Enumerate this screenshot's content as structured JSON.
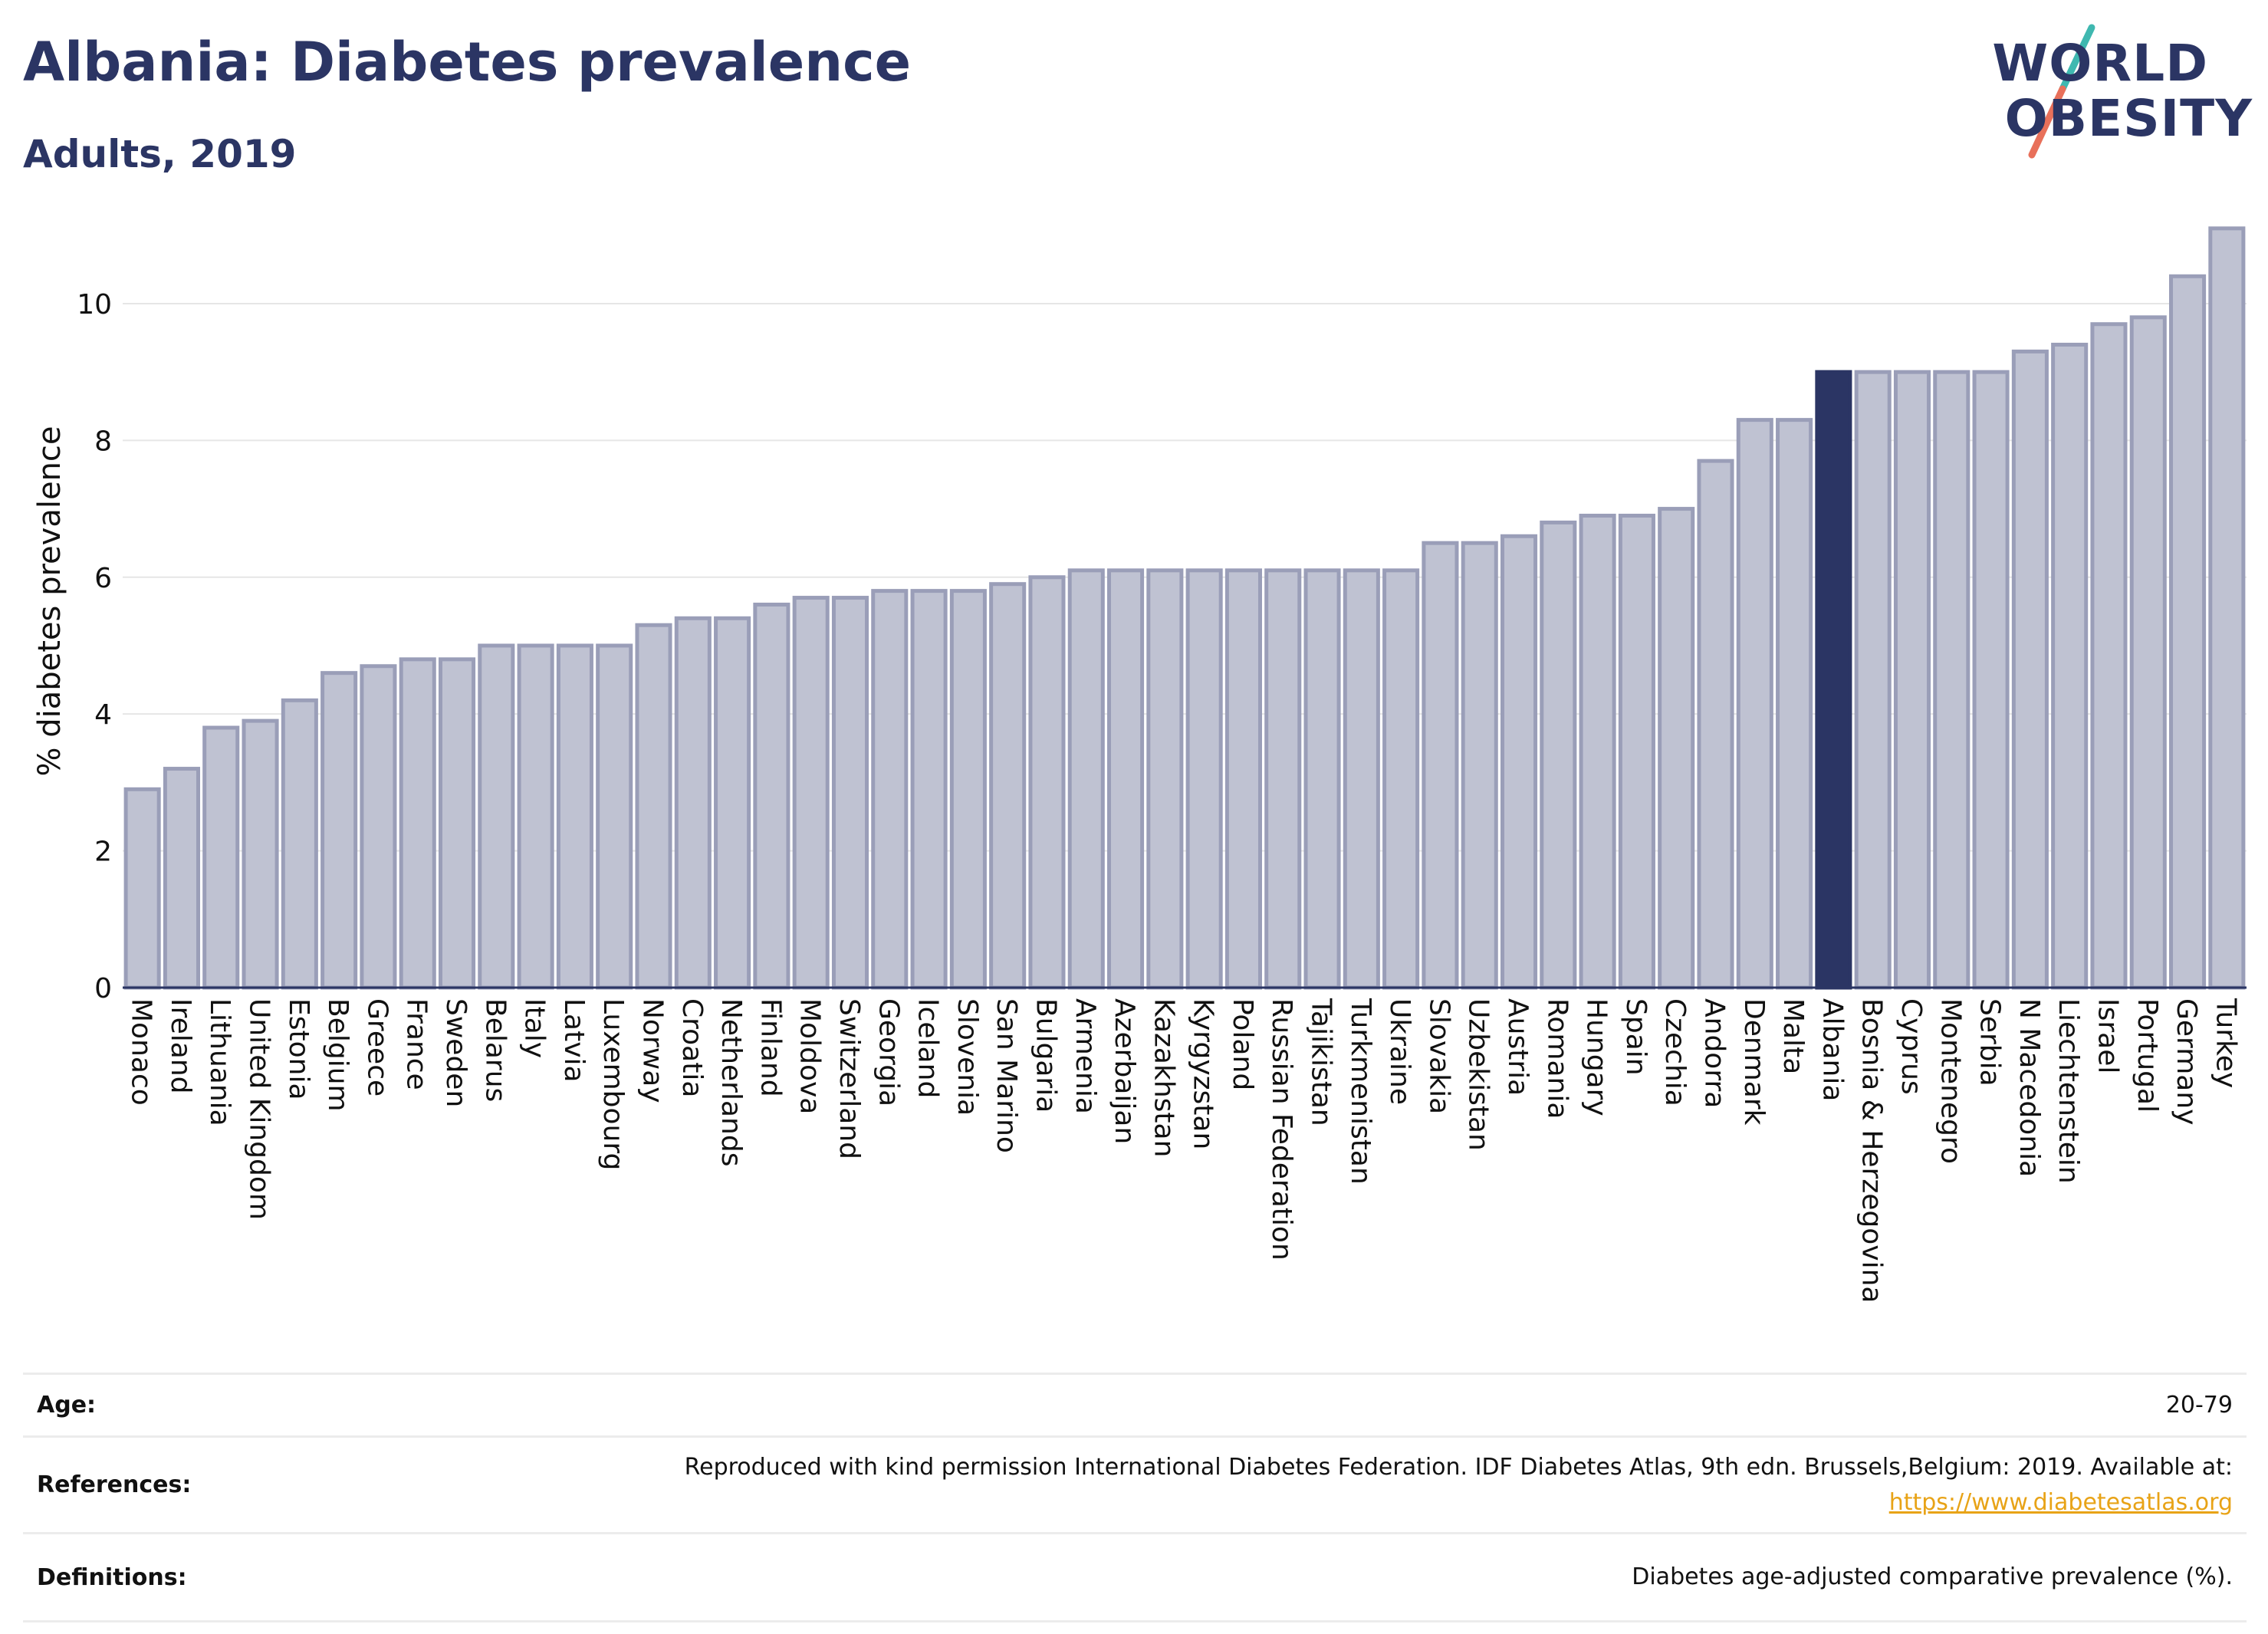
{
  "title": "Albania: Diabetes prevalence",
  "subtitle": "Adults, 2019",
  "logo": {
    "line1": "WORLD",
    "line2": "OBESITY",
    "slash_colors": [
      "#3fb8b0",
      "#e8705a"
    ]
  },
  "colors": {
    "bar": "#bfc2d2",
    "bar_edge": "#9a9eb8",
    "highlight": "#2b3564",
    "grid": "#e6e6e6",
    "axis": "#2b3564"
  },
  "chart_data": {
    "type": "bar",
    "ylabel": "% diabetes prevalence",
    "ylim": [
      0,
      11.3
    ],
    "yticks": [
      0,
      2,
      4,
      6,
      8,
      10
    ],
    "grid": true,
    "highlight": "Albania",
    "categories": [
      "Monaco",
      "Ireland",
      "Lithuania",
      "United Kingdom",
      "Estonia",
      "Belgium",
      "Greece",
      "France",
      "Sweden",
      "Belarus",
      "Italy",
      "Latvia",
      "Luxembourg",
      "Norway",
      "Croatia",
      "Netherlands",
      "Finland",
      "Moldova",
      "Switzerland",
      "Georgia",
      "Iceland",
      "Slovenia",
      "San Marino",
      "Bulgaria",
      "Armenia",
      "Azerbaijan",
      "Kazakhstan",
      "Kyrgyzstan",
      "Poland",
      "Russian Federation",
      "Tajikistan",
      "Turkmenistan",
      "Ukraine",
      "Slovakia",
      "Uzbekistan",
      "Austria",
      "Romania",
      "Hungary",
      "Spain",
      "Czechia",
      "Andorra",
      "Denmark",
      "Malta",
      "Albania",
      "Bosnia & Herzegovina",
      "Cyprus",
      "Montenegro",
      "Serbia",
      "N Macedonia",
      "Liechtenstein",
      "Israel",
      "Portugal",
      "Germany",
      "Turkey"
    ],
    "values": [
      2.9,
      3.2,
      3.8,
      3.9,
      4.2,
      4.6,
      4.7,
      4.8,
      4.8,
      5.0,
      5.0,
      5.0,
      5.0,
      5.3,
      5.4,
      5.4,
      5.6,
      5.7,
      5.7,
      5.8,
      5.8,
      5.8,
      5.9,
      6.0,
      6.1,
      6.1,
      6.1,
      6.1,
      6.1,
      6.1,
      6.1,
      6.1,
      6.1,
      6.5,
      6.5,
      6.6,
      6.8,
      6.9,
      6.9,
      7.0,
      7.7,
      8.3,
      8.3,
      9.0,
      9.0,
      9.0,
      9.0,
      9.0,
      9.3,
      9.4,
      9.7,
      9.8,
      10.4,
      11.1
    ]
  },
  "meta": {
    "age_label": "Age:",
    "age_value": "20-79",
    "ref_label": "References:",
    "ref_value": "Reproduced with kind permission International Diabetes Federation. IDF Diabetes Atlas, 9th edn. Brussels,Belgium: 2019. Available at:",
    "ref_link": "https://www.diabetesatlas.org",
    "def_label": "Definitions:",
    "def_value": "Diabetes age-adjusted comparative prevalence (%)."
  }
}
